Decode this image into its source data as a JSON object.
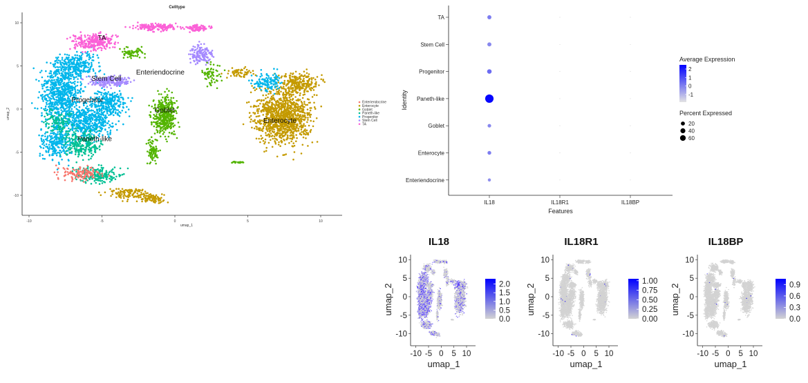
{
  "chart_data": [
    {
      "type": "scatter",
      "title": "Celltype",
      "xlabel": "umap_1",
      "ylabel": "umap_2",
      "xlim": [
        -11,
        12
      ],
      "ylim": [
        -11.8,
        11
      ],
      "x_ticks": [
        "-10",
        "-5",
        "0",
        "5",
        "10"
      ],
      "y_ticks": [
        "10",
        "5",
        "0",
        "-5",
        "-10"
      ],
      "legend_position": "right",
      "series": [
        {
          "name": "Enteriendocrine",
          "color": "#F8766D"
        },
        {
          "name": "Enterocyte",
          "color": "#C49A00"
        },
        {
          "name": "Goblet",
          "color": "#53B400"
        },
        {
          "name": "Paneth-like",
          "color": "#00C094"
        },
        {
          "name": "Progenitor",
          "color": "#00B6EB"
        },
        {
          "name": "Stem Cell",
          "color": "#A58AFF"
        },
        {
          "name": "TA",
          "color": "#FB61D7"
        }
      ],
      "cluster_labels": [
        {
          "text": "TA",
          "x": -5,
          "y": 8
        },
        {
          "text": "Enteriendocrine",
          "x": -1,
          "y": 4
        },
        {
          "text": "Stem Cell",
          "x": -4.7,
          "y": 3.3
        },
        {
          "text": "Progenitor",
          "x": -6,
          "y": 0.8
        },
        {
          "text": "Goblet",
          "x": -0.7,
          "y": -0.4
        },
        {
          "text": "Paneth-like",
          "x": -5.5,
          "y": -3.7
        },
        {
          "text": "Enterocyte",
          "x": 7.2,
          "y": -1.6
        }
      ]
    },
    {
      "type": "dot",
      "xlabel": "Features",
      "ylabel": "Identity",
      "features": [
        "IL18",
        "IL18R1",
        "IL18BP"
      ],
      "identities": [
        "TA",
        "Stem Cell",
        "Progenitor",
        "Paneth-like",
        "Goblet",
        "Enterocyte",
        "Enteriendocrine"
      ],
      "percent_expressed": [
        [
          8,
          0,
          0
        ],
        [
          8,
          0,
          0
        ],
        [
          11,
          0,
          0
        ],
        [
          62,
          0,
          0
        ],
        [
          5,
          0,
          0
        ],
        [
          6,
          0,
          0
        ],
        [
          3,
          0,
          0
        ]
      ],
      "average_expression": [
        [
          0.3,
          -1.2,
          -1.2
        ],
        [
          0.1,
          -1.2,
          -1.2
        ],
        [
          0.6,
          -1.2,
          -1.2
        ],
        [
          2.4,
          -1.2,
          -1.2
        ],
        [
          0.1,
          -1.2,
          -1.2
        ],
        [
          0.3,
          -1.2,
          -1.2
        ],
        [
          0.0,
          -1.2,
          -1.2
        ]
      ],
      "legend": {
        "color_title": "Average Expression",
        "color_ticks": [
          "2",
          "1",
          "0",
          "-1"
        ],
        "size_title": "Percent Expressed",
        "size_ticks": [
          "20",
          "40",
          "60"
        ]
      },
      "colors": {
        "low": "#E3E3E3",
        "high": "#0000FF"
      }
    },
    {
      "type": "scatter",
      "title": "IL18",
      "xlabel": "umap_1",
      "ylabel": "umap_2",
      "x_ticks": [
        "-10",
        "-5",
        "0",
        "5",
        "10"
      ],
      "y_ticks": [
        "10",
        "5",
        "0",
        "-5",
        "-10"
      ],
      "colorbar_ticks": [
        "2.0",
        "1.5",
        "1.0",
        "0.5",
        "0.0"
      ],
      "colorbar_range": [
        0,
        2.3
      ]
    },
    {
      "type": "scatter",
      "title": "IL18R1",
      "xlabel": "umap_1",
      "ylabel": "umap_2",
      "x_ticks": [
        "-10",
        "-5",
        "0",
        "5",
        "10"
      ],
      "y_ticks": [
        "10",
        "5",
        "0",
        "-5",
        "-10"
      ],
      "colorbar_ticks": [
        "1.00",
        "0.75",
        "0.50",
        "0.25",
        "0.00"
      ],
      "colorbar_range": [
        0,
        1.05
      ]
    },
    {
      "type": "scatter",
      "title": "IL18BP",
      "xlabel": "umap_1",
      "ylabel": "umap_2",
      "x_ticks": [
        "-10",
        "-5",
        "0",
        "5",
        "10"
      ],
      "y_ticks": [
        "10",
        "5",
        "0",
        "-5",
        "-10"
      ],
      "colorbar_ticks": [
        "0.9",
        "0.6",
        "0.3",
        "0.0"
      ],
      "colorbar_range": [
        0,
        1.05
      ]
    }
  ]
}
